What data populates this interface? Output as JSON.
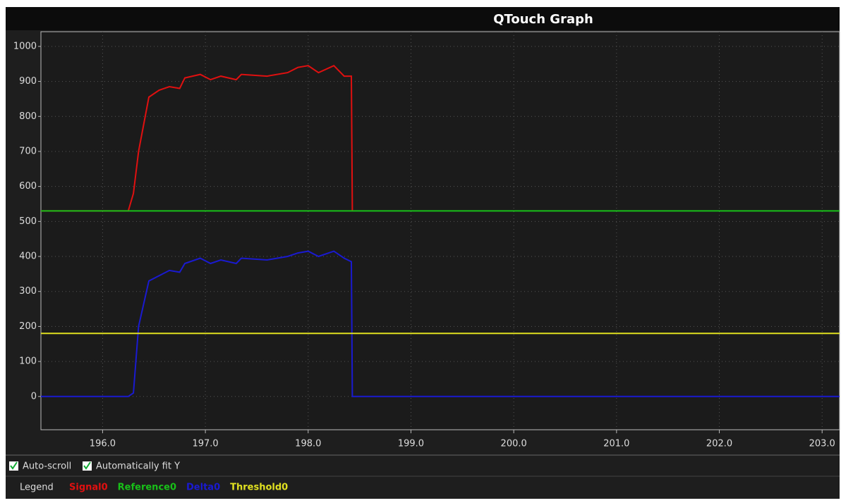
{
  "chart_data": {
    "type": "line",
    "title": "QTouch Graph",
    "x": [
      195.4,
      196.25,
      196.3,
      196.35,
      196.45,
      196.55,
      196.65,
      196.75,
      196.8,
      196.95,
      197.05,
      197.15,
      197.3,
      197.35,
      197.6,
      197.8,
      197.9,
      198.0,
      198.1,
      198.25,
      198.35,
      198.42,
      198.43,
      203.17
    ],
    "series": [
      {
        "name": "Signal0",
        "color": "#e01010",
        "values": [
          530,
          530,
          580,
          700,
          855,
          875,
          885,
          880,
          910,
          920,
          905,
          915,
          905,
          920,
          915,
          925,
          940,
          945,
          925,
          945,
          915,
          915,
          530,
          null
        ]
      },
      {
        "name": "Reference0",
        "color": "#18c018",
        "values": [
          530,
          530,
          530,
          530,
          530,
          530,
          530,
          530,
          530,
          530,
          530,
          530,
          530,
          530,
          530,
          530,
          530,
          530,
          530,
          530,
          530,
          530,
          530,
          530
        ]
      },
      {
        "name": "Delta0",
        "color": "#1a1ad0",
        "values": [
          0,
          0,
          10,
          200,
          330,
          345,
          360,
          355,
          380,
          395,
          380,
          390,
          380,
          395,
          390,
          400,
          410,
          415,
          400,
          415,
          395,
          385,
          0,
          0
        ]
      },
      {
        "name": "Threshold0",
        "color": "#e0e020",
        "values": [
          180,
          180,
          180,
          180,
          180,
          180,
          180,
          180,
          180,
          180,
          180,
          180,
          180,
          180,
          180,
          180,
          180,
          180,
          180,
          180,
          180,
          180,
          180,
          180
        ]
      }
    ],
    "xlim": [
      195.4,
      203.17
    ],
    "ylim": [
      -95,
      1042
    ],
    "xticks": [
      {
        "value": 196,
        "label": "196.0"
      },
      {
        "value": 197,
        "label": "197.0"
      },
      {
        "value": 198,
        "label": "198.0"
      },
      {
        "value": 199,
        "label": "199.0"
      },
      {
        "value": 200,
        "label": "200.0"
      },
      {
        "value": 201,
        "label": "201.0"
      },
      {
        "value": 202,
        "label": "202.0"
      },
      {
        "value": 203,
        "label": "203.0"
      }
    ],
    "yticks": [
      0,
      100,
      200,
      300,
      400,
      500,
      600,
      700,
      800,
      900,
      1000
    ],
    "grid": true
  },
  "controls": {
    "auto_scroll": "Auto-scroll",
    "auto_fit_y": "Automatically fit Y",
    "legend_label": "Legend"
  }
}
